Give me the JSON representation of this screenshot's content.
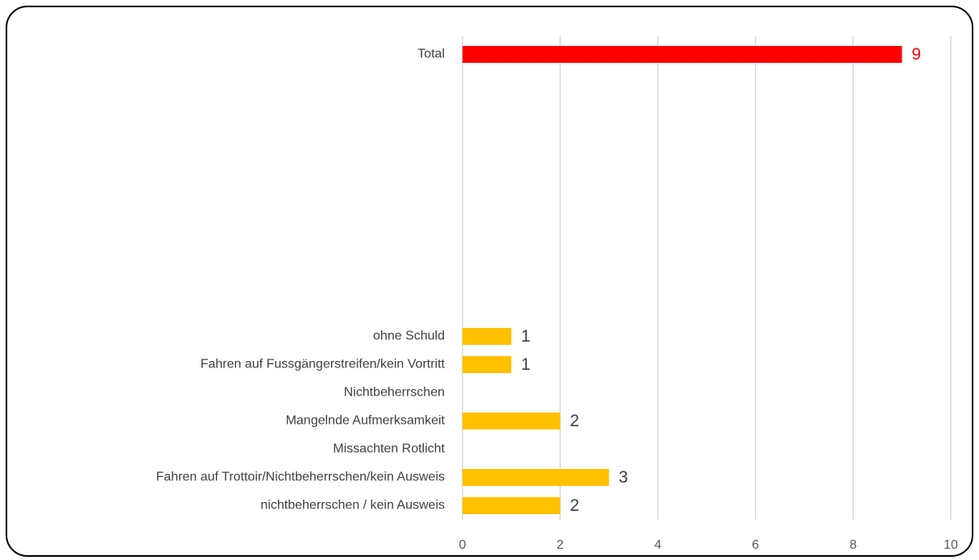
{
  "chart_data": {
    "type": "barh",
    "categories": [
      "Total",
      null,
      null,
      null,
      null,
      null,
      null,
      null,
      null,
      null,
      "ohne Schuld",
      "Fahren auf Fussgängerstreifen/kein Vortritt",
      "Nichtbeherrschen",
      "Mangelnde Aufmerksamkeit",
      "Missachten Rotlicht",
      "Fahren auf Trottoir/Nichtbeherrschen/kein Ausweis",
      "nichtbeherrschen / kein Ausweis"
    ],
    "values": [
      9,
      null,
      null,
      null,
      null,
      null,
      null,
      null,
      null,
      null,
      1,
      1,
      null,
      2,
      null,
      3,
      2
    ],
    "colors": [
      "#ff0000",
      null,
      null,
      null,
      null,
      null,
      null,
      null,
      null,
      null,
      "#ffc000",
      "#ffc000",
      null,
      "#ffc000",
      null,
      "#ffc000",
      "#ffc000"
    ],
    "label_colors": [
      "#ff0000",
      null,
      null,
      null,
      null,
      null,
      null,
      null,
      null,
      null,
      "#404040",
      "#404040",
      null,
      "#404040",
      null,
      "#404040",
      "#404040"
    ],
    "xlim": [
      0,
      10
    ],
    "xticks": [
      0,
      2,
      4,
      6,
      8,
      10
    ],
    "grid": true
  }
}
